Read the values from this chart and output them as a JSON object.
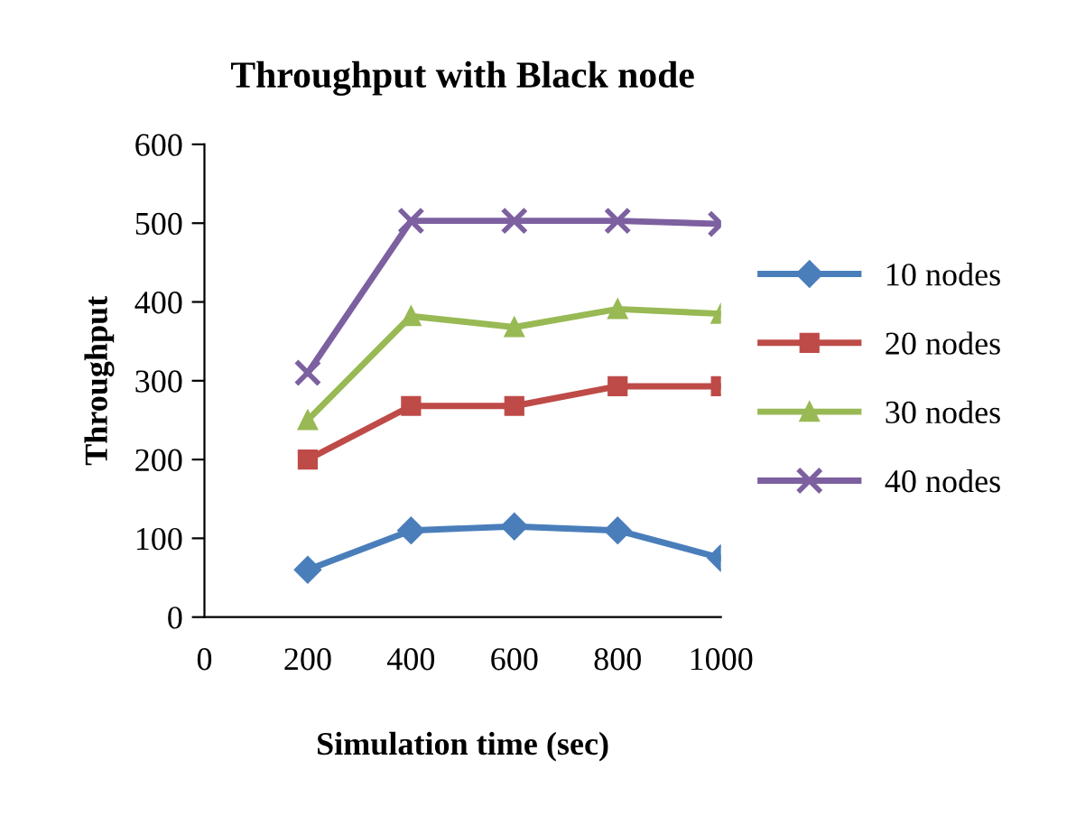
{
  "chart_data": {
    "type": "line",
    "title": "Throughput with Black node",
    "xlabel": "Simulation time (sec)",
    "ylabel": "Throughput",
    "x": [
      200,
      400,
      600,
      800,
      1000
    ],
    "series": [
      {
        "name": "10 nodes",
        "color": "#4a7ebb",
        "marker": "diamond",
        "values": [
          60,
          110,
          115,
          110,
          75
        ]
      },
      {
        "name": "20 nodes",
        "color": "#be4b48",
        "marker": "square",
        "values": [
          200,
          268,
          268,
          293,
          293
        ]
      },
      {
        "name": "30 nodes",
        "color": "#98b954",
        "marker": "triangle",
        "values": [
          250,
          382,
          368,
          391,
          385
        ]
      },
      {
        "name": "40 nodes",
        "color": "#7d60a0",
        "marker": "cross",
        "values": [
          310,
          503,
          503,
          503,
          499
        ]
      }
    ],
    "xlim": [
      0,
      1000
    ],
    "xticks": [
      0,
      200,
      400,
      600,
      800,
      1000
    ],
    "ylim": [
      0,
      600
    ],
    "yticks": [
      0,
      100,
      200,
      300,
      400,
      500,
      600
    ],
    "grid": false,
    "legend": "right",
    "line_style": "solid"
  }
}
